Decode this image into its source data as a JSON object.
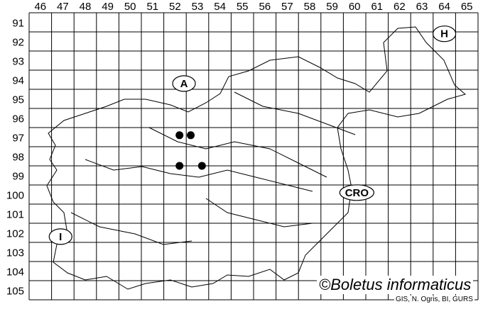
{
  "map": {
    "column_labels": [
      "46",
      "47",
      "48",
      "49",
      "50",
      "51",
      "52",
      "53",
      "54",
      "55",
      "56",
      "57",
      "58",
      "59",
      "60",
      "61",
      "62",
      "63",
      "64",
      "65"
    ],
    "row_labels": [
      "91",
      "92",
      "93",
      "94",
      "95",
      "96",
      "97",
      "98",
      "99",
      "100",
      "101",
      "102",
      "103",
      "104",
      "105"
    ],
    "country_labels": [
      {
        "code": "A",
        "col": 52.9,
        "row": 94.7
      },
      {
        "code": "H",
        "col": 64.5,
        "row": 92.1
      },
      {
        "code": "CRO",
        "col": 60.6,
        "row": 100.4
      },
      {
        "code": "I",
        "col": 47.4,
        "row": 102.7
      }
    ],
    "records": [
      {
        "col": 52.7,
        "row": 97.4
      },
      {
        "col": 53.2,
        "row": 97.4
      },
      {
        "col": 52.7,
        "row": 99.0
      },
      {
        "col": 53.7,
        "row": 99.0
      }
    ],
    "credit": "©Boletus informaticus",
    "source": "GIS, N. Ogris, BI, GURS"
  }
}
